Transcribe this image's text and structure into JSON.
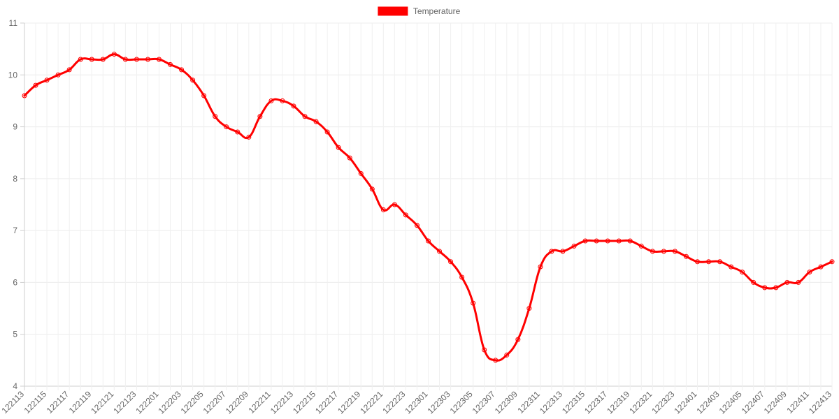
{
  "chart_data": {
    "type": "line",
    "x": [
      "122113",
      "122114",
      "122115",
      "122116",
      "122117",
      "122118",
      "122119",
      "122120",
      "122121",
      "122122",
      "122123",
      "122200",
      "122201",
      "122202",
      "122203",
      "122204",
      "122205",
      "122206",
      "122207",
      "122208",
      "122209",
      "122210",
      "122211",
      "122212",
      "122213",
      "122214",
      "122215",
      "122216",
      "122217",
      "122218",
      "122219",
      "122220",
      "122221",
      "122222",
      "122223",
      "122300",
      "122301",
      "122302",
      "122303",
      "122304",
      "122305",
      "122306",
      "122307",
      "122308",
      "122309",
      "122310",
      "122311",
      "122312",
      "122313",
      "122314",
      "122315",
      "122316",
      "122317",
      "122318",
      "122319",
      "122320",
      "122321",
      "122322",
      "122323",
      "122400",
      "122401",
      "122402",
      "122403",
      "122404",
      "122405",
      "122406",
      "122407",
      "122408",
      "122409",
      "122410",
      "122411",
      "122412",
      "122413"
    ],
    "tick_labels": [
      "122113",
      "122115",
      "122117",
      "122119",
      "122121",
      "122123",
      "122201",
      "122203",
      "122205",
      "122207",
      "122209",
      "122211",
      "122213",
      "122215",
      "122217",
      "122219",
      "122221",
      "122223",
      "122301",
      "122303",
      "122305",
      "122307",
      "122309",
      "122311",
      "122313",
      "122315",
      "122317",
      "122319",
      "122321",
      "122323",
      "122401",
      "122403",
      "122405",
      "122407",
      "122409",
      "122411",
      "122413"
    ],
    "series": [
      {
        "name": "Temperature",
        "color": "#ff0000",
        "values": [
          9.6,
          9.8,
          9.9,
          10.0,
          10.1,
          10.3,
          10.3,
          10.3,
          10.4,
          10.3,
          10.3,
          10.3,
          10.3,
          10.2,
          10.1,
          9.9,
          9.6,
          9.2,
          9.0,
          8.9,
          8.8,
          9.2,
          9.5,
          9.5,
          9.4,
          9.2,
          9.1,
          8.9,
          8.6,
          8.4,
          8.1,
          7.8,
          7.4,
          7.5,
          7.3,
          7.1,
          6.8,
          6.6,
          6.4,
          6.1,
          5.6,
          4.7,
          4.5,
          4.6,
          4.9,
          5.5,
          6.3,
          6.6,
          6.6,
          6.7,
          6.8,
          6.8,
          6.8,
          6.8,
          6.8,
          6.7,
          6.6,
          6.6,
          6.6,
          6.5,
          6.4,
          6.4,
          6.4,
          6.3,
          6.2,
          6.0,
          5.9,
          5.9,
          6.0,
          6.0,
          6.2,
          6.3,
          6.4
        ]
      }
    ],
    "y_ticks": [
      "4",
      "5",
      "6",
      "7",
      "8",
      "9",
      "10",
      "11"
    ],
    "ylim": [
      4,
      11
    ],
    "grid": true,
    "legend_position": "top-center"
  }
}
